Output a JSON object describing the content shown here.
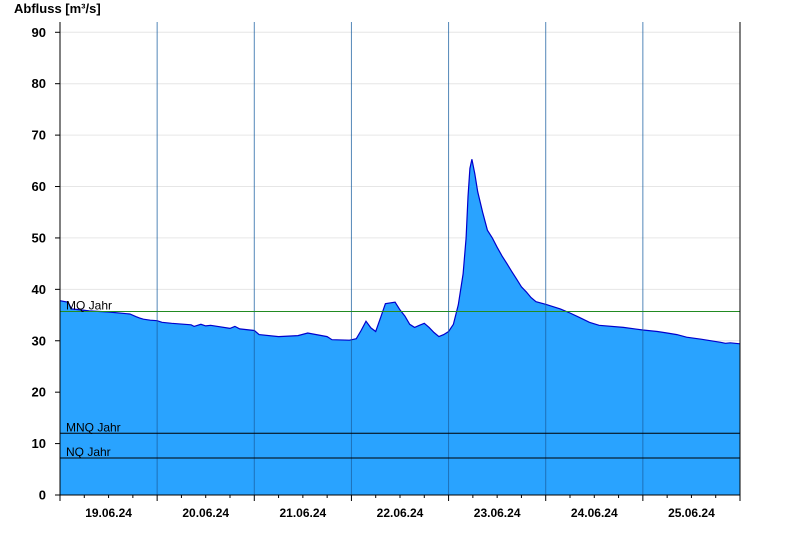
{
  "chart_data": {
    "type": "area",
    "title": "",
    "ylabel": "Abfluss [m³/s]",
    "xlabel": "",
    "ylim": [
      0,
      92
    ],
    "y_ticks": [
      0,
      10,
      20,
      30,
      40,
      50,
      60,
      70,
      80,
      90
    ],
    "x_range_days": [
      0,
      7
    ],
    "day_labels": [
      "19.06.24",
      "20.06.24",
      "21.06.24",
      "22.06.24",
      "23.06.24",
      "24.06.24",
      "25.06.24"
    ],
    "grid": true,
    "fill_color": "#29a3ff",
    "line_color": "#0000cc",
    "reference_lines": [
      {
        "label": "MQ Jahr",
        "value": 35.7,
        "color": "#228b22"
      },
      {
        "label": "MNQ Jahr",
        "value": 12.0,
        "color": "#000000"
      },
      {
        "label": "NQ Jahr",
        "value": 7.2,
        "color": "#000000"
      }
    ],
    "series": [
      {
        "x": [
          0,
          0.08,
          0.12,
          0.3,
          0.5,
          0.72,
          0.78,
          0.82,
          0.86,
          0.93,
          1.0,
          1.05,
          1.15,
          1.35,
          1.38,
          1.45,
          1.5,
          1.55,
          1.75,
          1.8,
          1.85,
          2.0,
          2.05,
          2.25,
          2.45,
          2.55,
          2.75,
          2.8,
          2.98,
          3.05,
          3.1,
          3.15,
          3.2,
          3.25,
          3.3,
          3.35,
          3.45,
          3.5,
          3.55,
          3.6,
          3.65,
          3.7,
          3.75,
          3.8,
          3.85,
          3.9,
          3.95,
          4.0,
          4.05,
          4.1,
          4.15,
          4.18,
          4.2,
          4.22,
          4.24,
          4.27,
          4.3,
          4.35,
          4.4,
          4.45,
          4.5,
          4.55,
          4.6,
          4.65,
          4.7,
          4.75,
          4.8,
          4.85,
          4.9,
          5.0,
          5.15,
          5.25,
          5.35,
          5.45,
          5.55,
          5.8,
          6.0,
          6.15,
          6.25,
          6.35,
          6.45,
          6.6,
          6.8,
          6.85,
          6.9,
          7.0
        ],
        "values": [
          37.8,
          37.5,
          36.2,
          35.8,
          35.6,
          35.2,
          34.7,
          34.4,
          34.2,
          34.0,
          33.9,
          33.6,
          33.4,
          33.1,
          32.8,
          33.2,
          32.9,
          33.0,
          32.4,
          32.8,
          32.3,
          32.0,
          31.2,
          30.8,
          31.0,
          31.5,
          30.8,
          30.2,
          30.1,
          30.4,
          32.0,
          33.8,
          32.5,
          31.8,
          34.5,
          37.2,
          37.5,
          36.0,
          34.8,
          33.2,
          32.6,
          33.0,
          33.4,
          32.6,
          31.6,
          30.8,
          31.2,
          31.8,
          33.2,
          37.0,
          43.0,
          50.0,
          58.0,
          63.5,
          65.3,
          62.5,
          59.0,
          55.0,
          51.5,
          50.0,
          48.2,
          46.5,
          45.0,
          43.5,
          42.0,
          40.5,
          39.5,
          38.4,
          37.6,
          37.1,
          36.2,
          35.4,
          34.5,
          33.6,
          33.0,
          32.6,
          32.1,
          31.8,
          31.5,
          31.2,
          30.7,
          30.3,
          29.7,
          29.5,
          29.6,
          29.4
        ]
      }
    ]
  }
}
